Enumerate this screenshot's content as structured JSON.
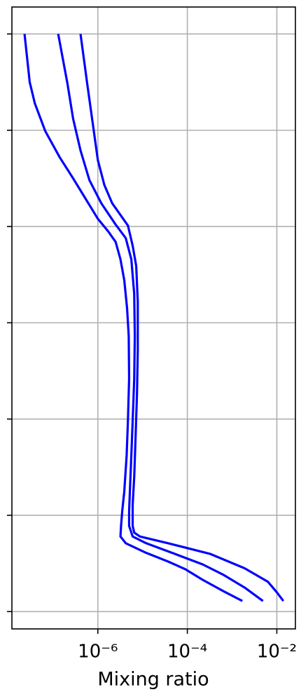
{
  "chart_data": {
    "type": "line",
    "orientation": "vertical-profile",
    "x_label": "Mixing ratio",
    "xscale": "log",
    "xlim": [
      1.2e-08,
      0.026
    ],
    "xticks": [
      {
        "value": 1e-06,
        "label": "10⁻⁶"
      },
      {
        "value": 0.0001,
        "label": "10⁻⁴"
      },
      {
        "value": 0.01,
        "label": "10⁻²"
      }
    ],
    "ylim": [
      -0.18,
      6.28
    ],
    "yticks": [
      0,
      1,
      2,
      3,
      4,
      5,
      6
    ],
    "grid": true,
    "series": [
      {
        "color": "#0000ff",
        "values": [
          2.3e-08,
          3e-08,
          3.9e-08,
          6.7e-08,
          1.4e-07,
          2.8e-07,
          5.8e-07,
          1e-06,
          1.7e-06,
          2.5e-06,
          3.2e-06,
          3.9e-06,
          4.5e-06,
          4.9e-06,
          5e-06,
          4.7e-06,
          4.4e-06,
          3.9e-06,
          3.5e-06,
          3.3e-06,
          3.2e-06,
          4.2e-06,
          1.2e-05,
          3.7e-05,
          9e-05,
          0.00022,
          0.00065,
          0.0017
        ],
        "y": [
          6.0,
          5.5,
          5.28,
          4.99,
          4.72,
          4.5,
          4.26,
          4.08,
          3.95,
          3.84,
          3.66,
          3.44,
          3.15,
          2.86,
          2.42,
          1.98,
          1.62,
          1.25,
          1.04,
          0.89,
          0.78,
          0.71,
          0.61,
          0.52,
          0.44,
          0.33,
          0.21,
          0.11
        ]
      },
      {
        "color": "#0000ff",
        "values": [
          1.3e-07,
          2.1e-07,
          2.8e-07,
          4.1e-07,
          6.5e-07,
          1.2e-06,
          2.5e-06,
          4.2e-06,
          5.6e-06,
          6.5e-06,
          6.7e-06,
          6.5e-06,
          6e-06,
          5.6e-06,
          5.2e-06,
          5e-06,
          5e-06,
          6e-06,
          1.2e-05,
          5.2e-05,
          0.00022,
          0.00065,
          0.0019,
          0.0049
        ],
        "y": [
          6.0,
          5.48,
          5.12,
          4.79,
          4.48,
          4.24,
          4.02,
          3.88,
          3.66,
          3.3,
          2.86,
          2.42,
          1.98,
          1.62,
          1.25,
          1.04,
          0.89,
          0.78,
          0.71,
          0.6,
          0.49,
          0.38,
          0.25,
          0.11
        ]
      },
      {
        "color": "#0000ff",
        "values": [
          4.1e-07,
          5.8e-07,
          7.8e-07,
          1e-06,
          1.4e-06,
          2.1e-06,
          4.7e-06,
          6e-06,
          7.2e-06,
          7.8e-06,
          7.8e-06,
          7.5e-06,
          7e-06,
          6.5e-06,
          6e-06,
          6e-06,
          6.5e-06,
          8.7e-06,
          3.7e-05,
          0.00032,
          0.0019,
          0.0063,
          0.01,
          0.014
        ],
        "y": [
          6.0,
          5.48,
          5.05,
          4.69,
          4.43,
          4.24,
          4.01,
          3.8,
          3.59,
          3.22,
          2.71,
          2.27,
          1.84,
          1.4,
          1.11,
          0.89,
          0.82,
          0.78,
          0.71,
          0.6,
          0.45,
          0.31,
          0.2,
          0.11
        ]
      }
    ]
  }
}
